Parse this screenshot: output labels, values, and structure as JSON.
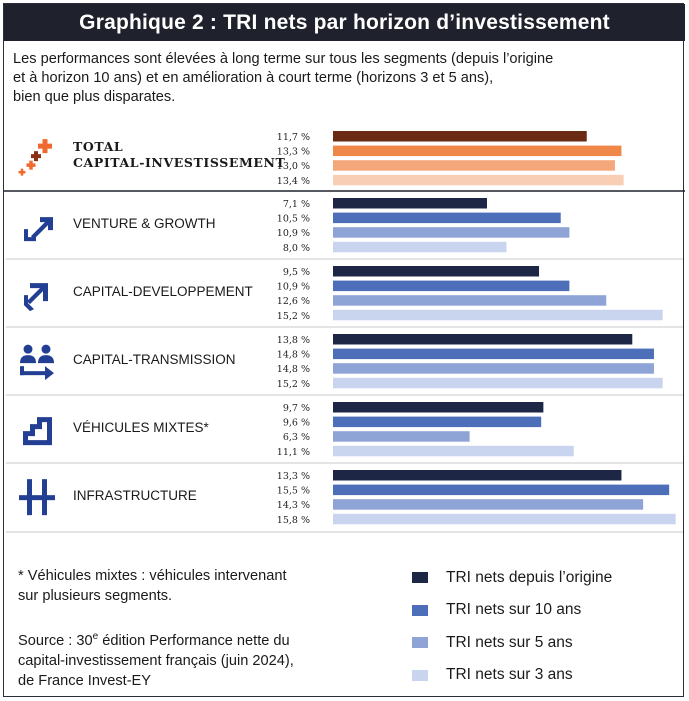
{
  "header": {
    "title": "Graphique 2 : TRI nets par horizon d’investissement"
  },
  "subtitle_lines": [
    "Les performances sont élevées à long terme sur tous les segments (depuis l’origine",
    "et à horizon 10 ans) et en amélioration à court terme (horizons 3 et 5 ans),",
    "bien que plus disparates."
  ],
  "colors": {
    "total": [
      "#6b2a14",
      "#ef8749",
      "#f4a77b",
      "#f8cfb4"
    ],
    "segments": [
      "#1d2745",
      "#4d6fba",
      "#8fa4d6",
      "#c9d5ee"
    ],
    "icon": "#233f93",
    "icon_total_dark": "#8c2f17",
    "icon_total_light": "#ef6a2e"
  },
  "chart_data": {
    "type": "bar",
    "orientation": "horizontal",
    "unit": "%",
    "xlim": [
      0,
      16
    ],
    "grid": false,
    "legend_position": "bottom-right",
    "categories": [
      "TOTAL CAPITAL-INVESTISSEMENT",
      "VENTURE & GROWTH",
      "CAPITAL-DEVELOPPEMENT",
      "CAPITAL-TRANSMISSION",
      "VÉHICULES MIXTES*",
      "INFRASTRUCTURE"
    ],
    "series": [
      {
        "name": "TRI nets depuis l’origine",
        "values": [
          11.7,
          7.1,
          9.5,
          13.8,
          9.7,
          13.3
        ],
        "labels": [
          "11,7 %",
          "7,1 %",
          "9,5 %",
          "13,8 %",
          "9,7 %",
          "13,3 %"
        ]
      },
      {
        "name": "TRI nets sur 10 ans",
        "values": [
          13.3,
          10.5,
          10.9,
          14.8,
          9.6,
          15.5
        ],
        "labels": [
          "13,3 %",
          "10,5 %",
          "10,9 %",
          "14,8 %",
          "9,6 %",
          "15,5 %"
        ]
      },
      {
        "name": "TRI nets sur 5 ans",
        "values": [
          13.0,
          10.9,
          12.6,
          14.8,
          6.3,
          14.3
        ],
        "labels": [
          "13,0 %",
          "10,9 %",
          "12,6 %",
          "14,8 %",
          "6,3 %",
          "14,3 %"
        ]
      },
      {
        "name": "TRI nets sur 3 ans",
        "values": [
          13.4,
          8.0,
          15.2,
          15.2,
          11.1,
          15.8
        ],
        "labels": [
          "13,4 %",
          "8,0 %",
          "15,2 %",
          "15,2 %",
          "11,1 %",
          "15,8 %"
        ]
      }
    ],
    "icons": [
      "plus-cluster-icon",
      "arrow-up-right-icon",
      "growth-arrow-icon",
      "people-transfer-icon",
      "stairs-icon",
      "infrastructure-icon"
    ]
  },
  "footnote_lines": [
    "* Véhicules mixtes : véhicules intervenant",
    "sur plusieurs segments."
  ],
  "source_lines": [
    "Source : 30e édition Performance nette du",
    "capital-investissement français (juin 2024),",
    "de France Invest-EY"
  ]
}
